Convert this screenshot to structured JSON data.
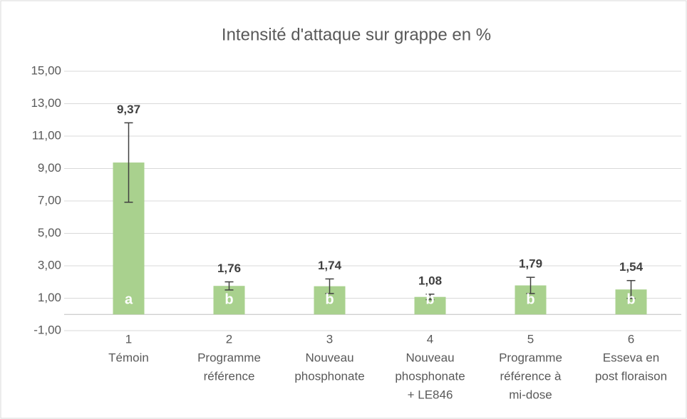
{
  "chart_data": {
    "type": "bar",
    "title": "Intensité d'attaque sur grappe en %",
    "categories": [
      [
        "1",
        "Témoin"
      ],
      [
        "2",
        "Programme",
        "référence"
      ],
      [
        "3",
        "Nouveau",
        "phosphonate"
      ],
      [
        "4",
        "Nouveau",
        "phosphonate",
        "+ LE846"
      ],
      [
        "5",
        "Programme",
        "référence à",
        "mi-dose"
      ],
      [
        "6",
        "Esseva en",
        "post floraison"
      ]
    ],
    "values": [
      9.37,
      1.76,
      1.74,
      1.08,
      1.79,
      1.54
    ],
    "value_labels": [
      "9,37",
      "1,76",
      "1,74",
      "1,08",
      "1,79",
      "1,54"
    ],
    "errors": [
      2.45,
      0.25,
      0.45,
      0.17,
      0.5,
      0.55
    ],
    "group_letters": [
      "a",
      "b",
      "b",
      "b",
      "b",
      "b"
    ],
    "color": "#a9d18e",
    "ylim": [
      -1,
      15
    ],
    "yticks": [
      {
        "value": -1,
        "label": "-1,00"
      },
      {
        "value": 1,
        "label": "1,00"
      },
      {
        "value": 3,
        "label": "3,00"
      },
      {
        "value": 5,
        "label": "5,00"
      },
      {
        "value": 7,
        "label": "7,00"
      },
      {
        "value": 9,
        "label": "9,00"
      },
      {
        "value": 11,
        "label": "11,00"
      },
      {
        "value": 13,
        "label": "13,00"
      },
      {
        "value": 15,
        "label": "15,00"
      }
    ],
    "grid": true
  }
}
